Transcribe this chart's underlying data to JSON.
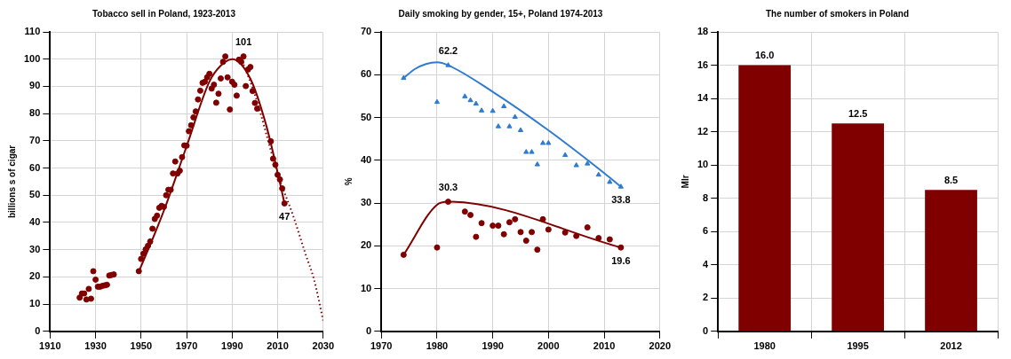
{
  "chart_data": [
    {
      "type": "scatter",
      "title": "Tobacco sell in Poland, 1923-2013",
      "ylabel": "billions s of cigar",
      "xlim": [
        1910,
        2030
      ],
      "xticks": [
        1910,
        1930,
        1950,
        1970,
        1990,
        2010,
        2030
      ],
      "ylim": [
        0,
        110
      ],
      "yticks": [
        0,
        10,
        20,
        30,
        40,
        50,
        60,
        70,
        80,
        90,
        100,
        110
      ],
      "grid": true,
      "legend": false,
      "series": [
        {
          "type": "scatter",
          "marker": "circle",
          "color": "#800000",
          "x": [
            1923,
            1924,
            1925,
            1926,
            1927,
            1928,
            1929,
            1930,
            1931,
            1932,
            1933,
            1934,
            1935,
            1936,
            1937,
            1938,
            1949,
            1950,
            1951,
            1952,
            1953,
            1954,
            1955,
            1956,
            1957,
            1958,
            1959,
            1960,
            1961,
            1962,
            1963,
            1964,
            1965,
            1966,
            1967,
            1968,
            1969,
            1970,
            1971,
            1972,
            1973,
            1974,
            1975,
            1976,
            1977,
            1978,
            1979,
            1980,
            1981,
            1982,
            1983,
            1984,
            1985,
            1986,
            1987,
            1988,
            1989,
            1990,
            1991,
            1992,
            1993,
            1994,
            1995,
            1996,
            1997,
            1998,
            1999,
            2000,
            2001,
            2007,
            2008,
            2009,
            2010,
            2011,
            2012,
            2013
          ],
          "values": [
            12.4,
            13.9,
            13.9,
            11.7,
            15.6,
            12,
            22.1,
            19,
            16.4,
            16.4,
            16.7,
            16.9,
            17.1,
            20.5,
            20.7,
            20.9,
            22.1,
            26.6,
            28.5,
            30.1,
            31.4,
            33,
            37.7,
            41.3,
            42.5,
            45.4,
            46.1,
            45.7,
            50,
            52,
            52,
            58,
            62.4,
            58,
            59,
            64,
            68.3,
            68.2,
            73.5,
            75.7,
            78.6,
            80.8,
            85.2,
            88.4,
            91.3,
            91.7,
            93.3,
            94.6,
            89.2,
            90.6,
            84,
            87.3,
            92.9,
            99,
            101,
            93.3,
            81.5,
            91.7,
            90.6,
            86.6,
            99.8,
            99,
            101,
            90.1,
            96.2,
            97.1,
            88.3,
            83.9,
            81.8,
            69.8,
            63.4,
            61.2,
            57.5,
            55.8,
            52.5,
            47
          ]
        },
        {
          "type": "line",
          "marker": "none",
          "color": "#800000",
          "x": [
            1949,
            1950,
            1960,
            1970,
            1980,
            1985,
            1990,
            1998,
            2005,
            2010,
            2013
          ],
          "values": [
            22,
            23.9,
            44.3,
            68,
            91.7,
            97.6,
            100,
            92.8,
            75.6,
            58.3,
            47
          ]
        },
        {
          "type": "line",
          "marker": "none",
          "line_style": "dotted",
          "color": "#800000",
          "x": [
            1995,
            2000,
            2010,
            2017,
            2022,
            2026,
            2030
          ],
          "values": [
            98,
            87,
            58,
            42,
            29,
            19,
            4
          ]
        }
      ],
      "annotations": [
        {
          "text": "101",
          "x": 1995,
          "y": 101
        },
        {
          "text": "47",
          "x": 2013,
          "y": 47
        }
      ]
    },
    {
      "type": "scatter",
      "title": "Daily smoking by gender, 15+, Poland 1974-2013",
      "ylabel": "%",
      "xlim": [
        1970,
        2020
      ],
      "xticks": [
        1970,
        1980,
        1990,
        2000,
        2010,
        2020
      ],
      "ylim": [
        0,
        70
      ],
      "yticks": [
        0,
        10,
        20,
        30,
        40,
        50,
        60,
        70
      ],
      "grid": true,
      "legend": false,
      "series": [
        {
          "type": "scatter",
          "marker": "triangle",
          "color": "#2f7bd0",
          "x": [
            1974,
            1980,
            1982,
            1985,
            1986,
            1987,
            1988,
            1990,
            1991,
            1992,
            1993,
            1994,
            1995,
            1996,
            1997,
            1998,
            1999,
            2000,
            2003,
            2005,
            2007,
            2009,
            2011,
            2013
          ],
          "values": [
            59.2,
            53.6,
            62.2,
            54.9,
            54,
            53.2,
            51.6,
            51.5,
            47.9,
            52.6,
            47.9,
            50.1,
            47,
            41.9,
            41.9,
            39,
            44,
            44,
            41.2,
            38.8,
            39.2,
            36.6,
            34.9,
            33.8
          ]
        },
        {
          "type": "line",
          "marker": "none",
          "color": "#2f7bd0",
          "x": [
            1974,
            1976,
            1978,
            1980,
            1982,
            1990,
            2000,
            2010,
            2013
          ],
          "values": [
            59.2,
            61.3,
            62.5,
            62.9,
            62.2,
            56,
            47,
            37,
            33.8
          ]
        },
        {
          "type": "scatter",
          "marker": "circle",
          "color": "#800000",
          "x": [
            1974,
            1980,
            1982,
            1985,
            1986,
            1987,
            1988,
            1990,
            1991,
            1992,
            1993,
            1994,
            1995,
            1996,
            1997,
            1998,
            1999,
            2000,
            2003,
            2005,
            2007,
            2009,
            2011,
            2013
          ],
          "values": [
            17.9,
            19.6,
            30.3,
            28,
            27.2,
            22.1,
            25.3,
            24.7,
            24.7,
            22.7,
            25.5,
            26.2,
            23.2,
            21.2,
            23.2,
            19.1,
            26.2,
            23.8,
            23.1,
            22.3,
            24.3,
            21.8,
            21.5,
            19.6
          ]
        },
        {
          "type": "line",
          "marker": "none",
          "color": "#800000",
          "x": [
            1974,
            1980,
            1982,
            2013
          ],
          "values": [
            17.9,
            29.6,
            30.3,
            19.6
          ]
        }
      ],
      "annotations": [
        {
          "text": "62.2",
          "x": 1982,
          "y": 62.2
        },
        {
          "text": "33.8",
          "x": 2013,
          "y": 33.8
        },
        {
          "text": "30.3",
          "x": 1982,
          "y": 30.3
        },
        {
          "text": "19.6",
          "x": 2013,
          "y": 19.6
        }
      ]
    },
    {
      "type": "bar",
      "title": "The number of smokers in Poland",
      "ylabel": "Mlr",
      "categories": [
        "1980",
        "1995",
        "2012"
      ],
      "values": [
        16,
        12.5,
        8.5
      ],
      "value_labels": [
        "16.0",
        "12.5",
        "8.5"
      ],
      "color": "#800000",
      "ylim": [
        0,
        18
      ],
      "yticks": [
        0,
        2,
        4,
        6,
        8,
        10,
        12,
        14,
        16,
        18
      ],
      "grid": true,
      "legend": false
    }
  ]
}
